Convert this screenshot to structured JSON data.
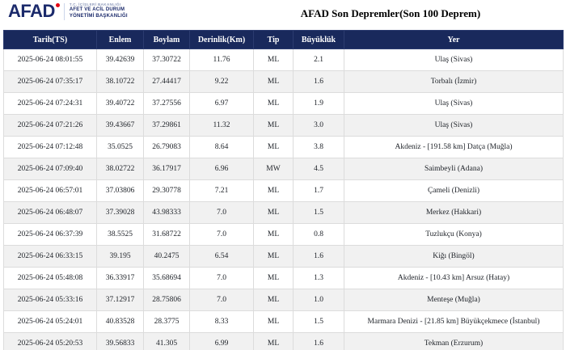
{
  "logo": {
    "brand": "AFAD",
    "ministry": "T.C. İÇİŞLERİ BAKANLIĞI",
    "agency_line1": "AFET VE ACİL DURUM",
    "agency_line2": "YÖNETİMİ BAŞKANLIĞI"
  },
  "header": {
    "title": "AFAD Son Depremler(Son 100 Deprem)"
  },
  "table": {
    "columns": [
      "Tarih(TS)",
      "Enlem",
      "Boylam",
      "Derinlik(Km)",
      "Tip",
      "Büyüklük",
      "Yer"
    ],
    "column_keys": [
      "tarih",
      "enlem",
      "boylam",
      "derinlik",
      "tip",
      "buyukluk",
      "yer"
    ],
    "rows": [
      [
        "2025-06-24 08:01:55",
        "39.42639",
        "37.30722",
        "11.76",
        "ML",
        "2.1",
        "Ulaş (Sivas)"
      ],
      [
        "2025-06-24 07:35:17",
        "38.10722",
        "27.44417",
        "9.22",
        "ML",
        "1.6",
        "Torbalı (İzmir)"
      ],
      [
        "2025-06-24 07:24:31",
        "39.40722",
        "37.27556",
        "6.97",
        "ML",
        "1.9",
        "Ulaş (Sivas)"
      ],
      [
        "2025-06-24 07:21:26",
        "39.43667",
        "37.29861",
        "11.32",
        "ML",
        "3.0",
        "Ulaş (Sivas)"
      ],
      [
        "2025-06-24 07:12:48",
        "35.0525",
        "26.79083",
        "8.64",
        "ML",
        "3.8",
        "Akdeniz - [191.58 km] Datça (Muğla)"
      ],
      [
        "2025-06-24 07:09:40",
        "38.02722",
        "36.17917",
        "6.96",
        "MW",
        "4.5",
        "Saimbeyli (Adana)"
      ],
      [
        "2025-06-24 06:57:01",
        "37.03806",
        "29.30778",
        "7.21",
        "ML",
        "1.7",
        "Çameli (Denizli)"
      ],
      [
        "2025-06-24 06:48:07",
        "37.39028",
        "43.98333",
        "7.0",
        "ML",
        "1.5",
        "Merkez (Hakkari)"
      ],
      [
        "2025-06-24 06:37:39",
        "38.5525",
        "31.68722",
        "7.0",
        "ML",
        "0.8",
        "Tuzlukçu (Konya)"
      ],
      [
        "2025-06-24 06:33:15",
        "39.195",
        "40.2475",
        "6.54",
        "ML",
        "1.6",
        "Kiğı (Bingöl)"
      ],
      [
        "2025-06-24 05:48:08",
        "36.33917",
        "35.68694",
        "7.0",
        "ML",
        "1.3",
        "Akdeniz - [10.43 km] Arsuz (Hatay)"
      ],
      [
        "2025-06-24 05:33:16",
        "37.12917",
        "28.75806",
        "7.0",
        "ML",
        "1.0",
        "Menteşe (Muğla)"
      ],
      [
        "2025-06-24 05:24:01",
        "40.83528",
        "28.3775",
        "8.33",
        "ML",
        "1.5",
        "Marmara Denizi - [21.85 km] Büyükçekmece (İstanbul)"
      ],
      [
        "2025-06-24 05:20:53",
        "39.56833",
        "41.305",
        "6.99",
        "ML",
        "1.6",
        "Tekman (Erzurum)"
      ]
    ]
  },
  "colors": {
    "header_bg": "#19295c",
    "brand_navy": "#1b2a6b",
    "brand_red": "#e30613",
    "row_alt": "#f1f1f1"
  }
}
